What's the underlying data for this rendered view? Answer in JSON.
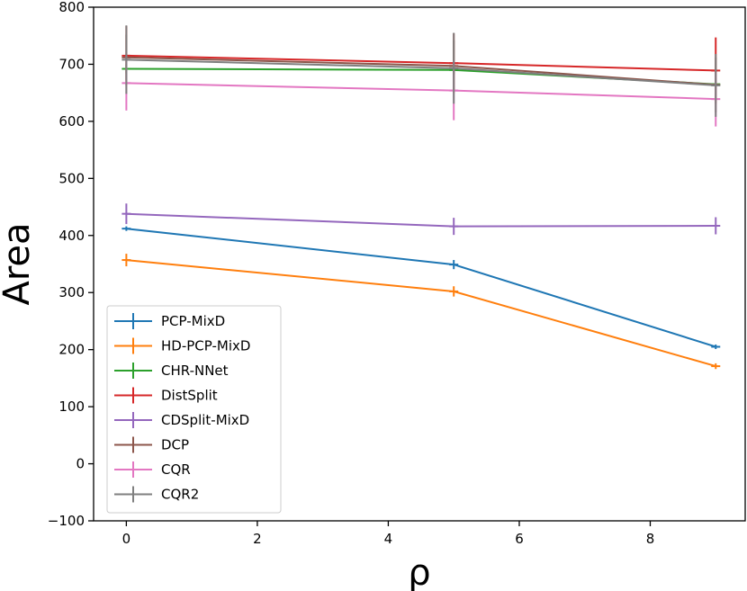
{
  "chart_data": {
    "type": "line",
    "title": "",
    "xlabel": "ρ",
    "ylabel": "Area",
    "xlim": [
      -0.5,
      9.45
    ],
    "ylim": [
      -100,
      800
    ],
    "xticks": [
      0,
      2,
      4,
      6,
      8
    ],
    "xtick_labels": [
      "0",
      "2",
      "4",
      "6",
      "8"
    ],
    "yticks": [
      -100,
      0,
      100,
      200,
      300,
      400,
      500,
      600,
      700,
      800
    ],
    "ytick_labels": [
      "−100",
      "0",
      "100",
      "200",
      "300",
      "400",
      "500",
      "600",
      "700",
      "800"
    ],
    "grid": false,
    "legend_position": "lower-left",
    "x": [
      0,
      5,
      9
    ],
    "series": [
      {
        "name": "PCP-MixD",
        "color": "#1f77b4",
        "values": [
          412,
          349,
          205
        ],
        "errors": [
          4,
          8,
          4
        ]
      },
      {
        "name": "HD-PCP-MixD",
        "color": "#ff7f0e",
        "values": [
          357,
          302,
          171
        ],
        "errors": [
          11,
          9,
          5
        ]
      },
      {
        "name": "CHR-NNet",
        "color": "#2ca02c",
        "values": [
          692,
          690,
          665
        ],
        "errors": [
          8,
          8,
          10
        ]
      },
      {
        "name": "DistSplit",
        "color": "#d62728",
        "values": [
          715,
          702,
          689
        ],
        "errors": [
          52,
          52,
          58
        ]
      },
      {
        "name": "CDSplit-MixD",
        "color": "#9467bd",
        "values": [
          438,
          416,
          417
        ],
        "errors": [
          18,
          15,
          15
        ]
      },
      {
        "name": "DCP",
        "color": "#8c564b",
        "values": [
          712,
          697,
          664
        ],
        "errors": [
          40,
          45,
          48
        ]
      },
      {
        "name": "CQR",
        "color": "#e377c2",
        "values": [
          667,
          654,
          639
        ],
        "errors": [
          48,
          52,
          48
        ]
      },
      {
        "name": "CQR2",
        "color": "#7f7f7f",
        "values": [
          708,
          693,
          663
        ],
        "errors": [
          60,
          62,
          55
        ]
      }
    ]
  }
}
